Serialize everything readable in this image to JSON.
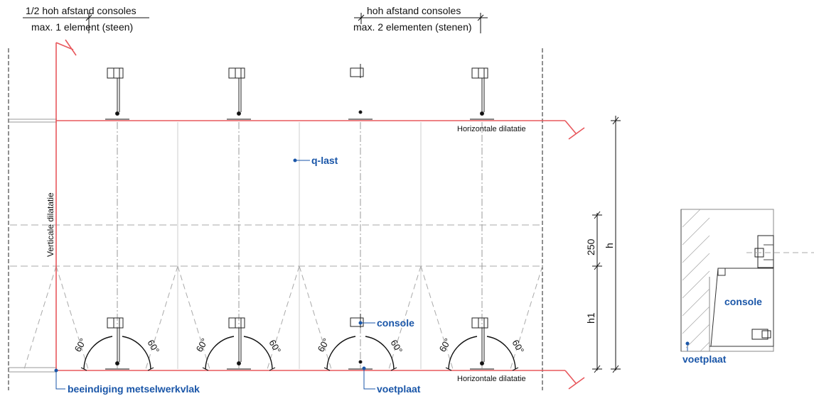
{
  "top_left_dim": {
    "line1": "1/2 hoh afstand consoles",
    "line2": "max. 1 element (steen)"
  },
  "top_mid_dim": {
    "line1": "hoh afstand consoles",
    "line2": "max. 2 elementen (stenen)"
  },
  "horizontal_dilatation_top": "Horizontale dilatatie",
  "horizontal_dilatation_bottom": "Horizontale dilatatie",
  "vertical_dilatation": "Verticale dilatatie",
  "labels": {
    "q_last": "q-last",
    "console_main": "console",
    "end_wall": "beeindiging metselwerkvlak",
    "footplate_main": "voetplaat",
    "console_detail": "console",
    "footplate_detail": "voetplaat"
  },
  "dimensions": {
    "d250": "250",
    "h": "h",
    "h1": "h1"
  },
  "angles": [
    "60°",
    "60°",
    "60°",
    "60°",
    "60°",
    "60°",
    "60°",
    "60°"
  ],
  "colors": {
    "red_line": "#e8585d",
    "blue_label": "#1a56a8",
    "grey_dash": "#9a9a9a",
    "black": "#111111"
  }
}
